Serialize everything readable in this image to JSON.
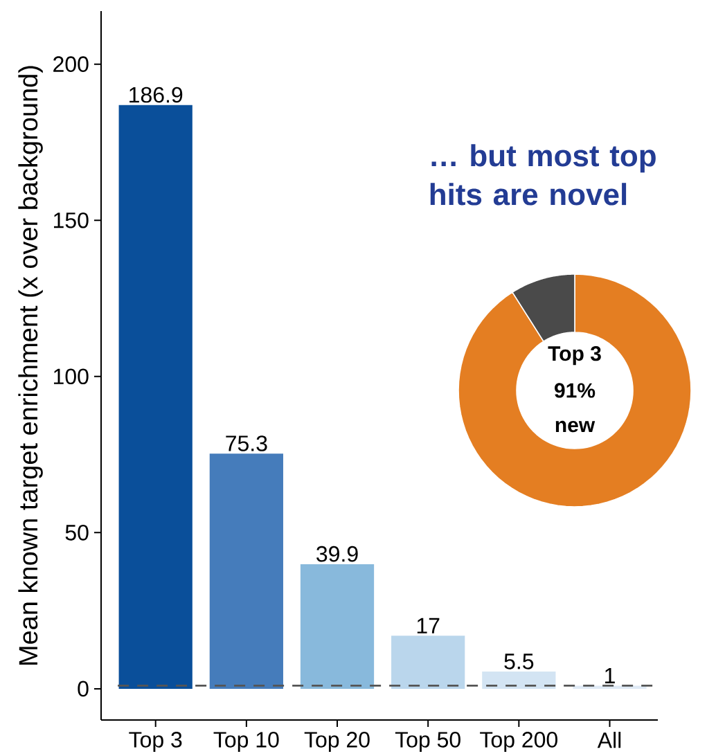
{
  "chart_data": [
    {
      "type": "bar",
      "categories": [
        "Top 3",
        "Top 10",
        "Top 20",
        "Top 50",
        "Top 200",
        "All"
      ],
      "values": [
        186.9,
        75.3,
        39.9,
        17,
        5.5,
        1
      ],
      "colors": [
        "#0a4f9a",
        "#457cbb",
        "#88b9dc",
        "#bad6ec",
        "#d3e4f3",
        "#dfeaf5"
      ],
      "ylabel": "Mean known target enrichment (x over background)",
      "ylim": [
        -10,
        217
      ],
      "yticks": [
        0,
        50,
        100,
        150,
        200
      ],
      "data_labels": true,
      "ref_lines": [
        {
          "axis": "y",
          "value": 1,
          "color": "#555555",
          "line_style": "dashed"
        }
      ]
    },
    {
      "type": "donut",
      "title": "… but most top hits are novel",
      "categories": [
        null,
        null
      ],
      "values": [
        91,
        9
      ],
      "colors": [
        "#e47e22",
        "#4a4a4a"
      ],
      "annotations": [
        "Top 3",
        "91%",
        "new"
      ]
    }
  ]
}
